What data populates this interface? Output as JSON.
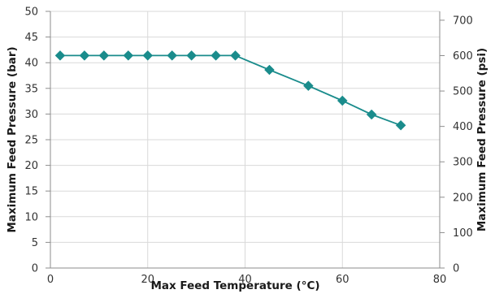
{
  "chart_data": {
    "type": "line",
    "title": "",
    "xlabel": "Max Feed Temperature (°C)",
    "ylabel": "Maximum Feed Pressure (bar)",
    "y2label": "Maximum Feed Pressure (psi)",
    "xlim": [
      0,
      80
    ],
    "ylim": [
      0,
      50
    ],
    "y2lim": [
      0,
      725
    ],
    "x_ticks": [
      "0",
      "20",
      "40",
      "60",
      "80"
    ],
    "y_ticks": [
      "0",
      "5",
      "10",
      "15",
      "20",
      "25",
      "30",
      "35",
      "40",
      "45",
      "50"
    ],
    "y2_ticks": [
      "0",
      "100",
      "200",
      "300",
      "400",
      "500",
      "600",
      "700"
    ],
    "grid": true,
    "marker": "diamond",
    "colors": {
      "line": "#1a8c8c",
      "marker": "#1a8c8c",
      "grid": "#d9d9d9",
      "axis": "#8c8c8c"
    },
    "series": [
      {
        "x": [
          2,
          7,
          11,
          16,
          20,
          25,
          29,
          34,
          38,
          45,
          53,
          60,
          66,
          72
        ],
        "y": [
          41.4,
          41.4,
          41.4,
          41.4,
          41.4,
          41.4,
          41.4,
          41.4,
          41.4,
          38.6,
          35.5,
          32.6,
          29.9,
          27.8
        ]
      }
    ]
  }
}
